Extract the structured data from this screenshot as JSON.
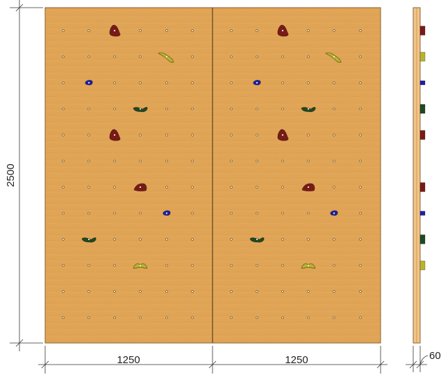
{
  "dimensions": {
    "height": "2500",
    "panel_widths": [
      "1250",
      "1250"
    ],
    "thickness": "60"
  },
  "colors": {
    "plywood": "#e0a456",
    "plywood_edge": "#c98f45",
    "side_face": "#f1c58a",
    "dark_red": "#7a1a17",
    "olive": "#b5b52c",
    "blue": "#1c22a8",
    "dark_green": "#1f4a22"
  },
  "bolt_grid": {
    "columns_per_panel": 6,
    "rows": 12
  },
  "holds": [
    {
      "panel": 0,
      "col": 2,
      "row": 0,
      "shape": "drop",
      "color": "dark_red"
    },
    {
      "panel": 0,
      "col": 4,
      "row": 1,
      "shape": "boomerang",
      "color": "olive"
    },
    {
      "panel": 0,
      "col": 1,
      "row": 2,
      "shape": "small",
      "color": "blue"
    },
    {
      "panel": 0,
      "col": 3,
      "row": 3,
      "shape": "sloper",
      "color": "dark_green"
    },
    {
      "panel": 0,
      "col": 2,
      "row": 4,
      "shape": "drop",
      "color": "dark_red"
    },
    {
      "panel": 0,
      "col": 3,
      "row": 6,
      "shape": "crimp",
      "color": "dark_red"
    },
    {
      "panel": 0,
      "col": 4,
      "row": 7,
      "shape": "small",
      "color": "blue"
    },
    {
      "panel": 0,
      "col": 1,
      "row": 8,
      "shape": "sloper",
      "color": "dark_green"
    },
    {
      "panel": 0,
      "col": 3,
      "row": 9,
      "shape": "boomerang-flat",
      "color": "olive"
    },
    {
      "panel": 1,
      "col": 2,
      "row": 0,
      "shape": "drop",
      "color": "dark_red"
    },
    {
      "panel": 1,
      "col": 4,
      "row": 1,
      "shape": "boomerang",
      "color": "olive"
    },
    {
      "panel": 1,
      "col": 1,
      "row": 2,
      "shape": "small",
      "color": "blue"
    },
    {
      "panel": 1,
      "col": 3,
      "row": 3,
      "shape": "sloper",
      "color": "dark_green"
    },
    {
      "panel": 1,
      "col": 2,
      "row": 4,
      "shape": "drop",
      "color": "dark_red"
    },
    {
      "panel": 1,
      "col": 3,
      "row": 6,
      "shape": "crimp",
      "color": "dark_red"
    },
    {
      "panel": 1,
      "col": 4,
      "row": 7,
      "shape": "small",
      "color": "blue"
    },
    {
      "panel": 1,
      "col": 1,
      "row": 8,
      "shape": "sloper",
      "color": "dark_green"
    },
    {
      "panel": 1,
      "col": 3,
      "row": 9,
      "shape": "boomerang-flat",
      "color": "olive"
    }
  ],
  "side_holds": [
    {
      "row": 0,
      "color": "dark_red"
    },
    {
      "row": 1,
      "color": "olive"
    },
    {
      "row": 2,
      "color": "blue"
    },
    {
      "row": 3,
      "color": "dark_green"
    },
    {
      "row": 4,
      "color": "dark_red"
    },
    {
      "row": 6,
      "color": "dark_red"
    },
    {
      "row": 7,
      "color": "blue"
    },
    {
      "row": 8,
      "color": "dark_green"
    },
    {
      "row": 9,
      "color": "olive"
    }
  ]
}
